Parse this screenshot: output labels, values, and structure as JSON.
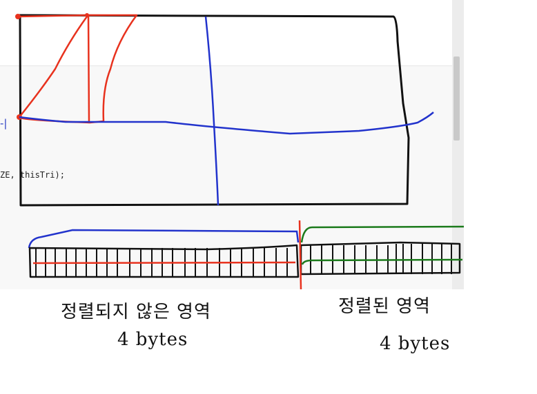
{
  "editor": {
    "code_fragment": "ZE, thisTri);",
    "left_mark": "-|"
  },
  "annotations": {
    "left_label": "정렬되지 않은 영역",
    "left_size": "4 bytes",
    "right_label": "정렬된 영역",
    "right_size": "4 bytes"
  },
  "colors": {
    "ink": "#111111",
    "red": "#e8321e",
    "blue": "#2233cc",
    "green": "#1b7a1b"
  }
}
